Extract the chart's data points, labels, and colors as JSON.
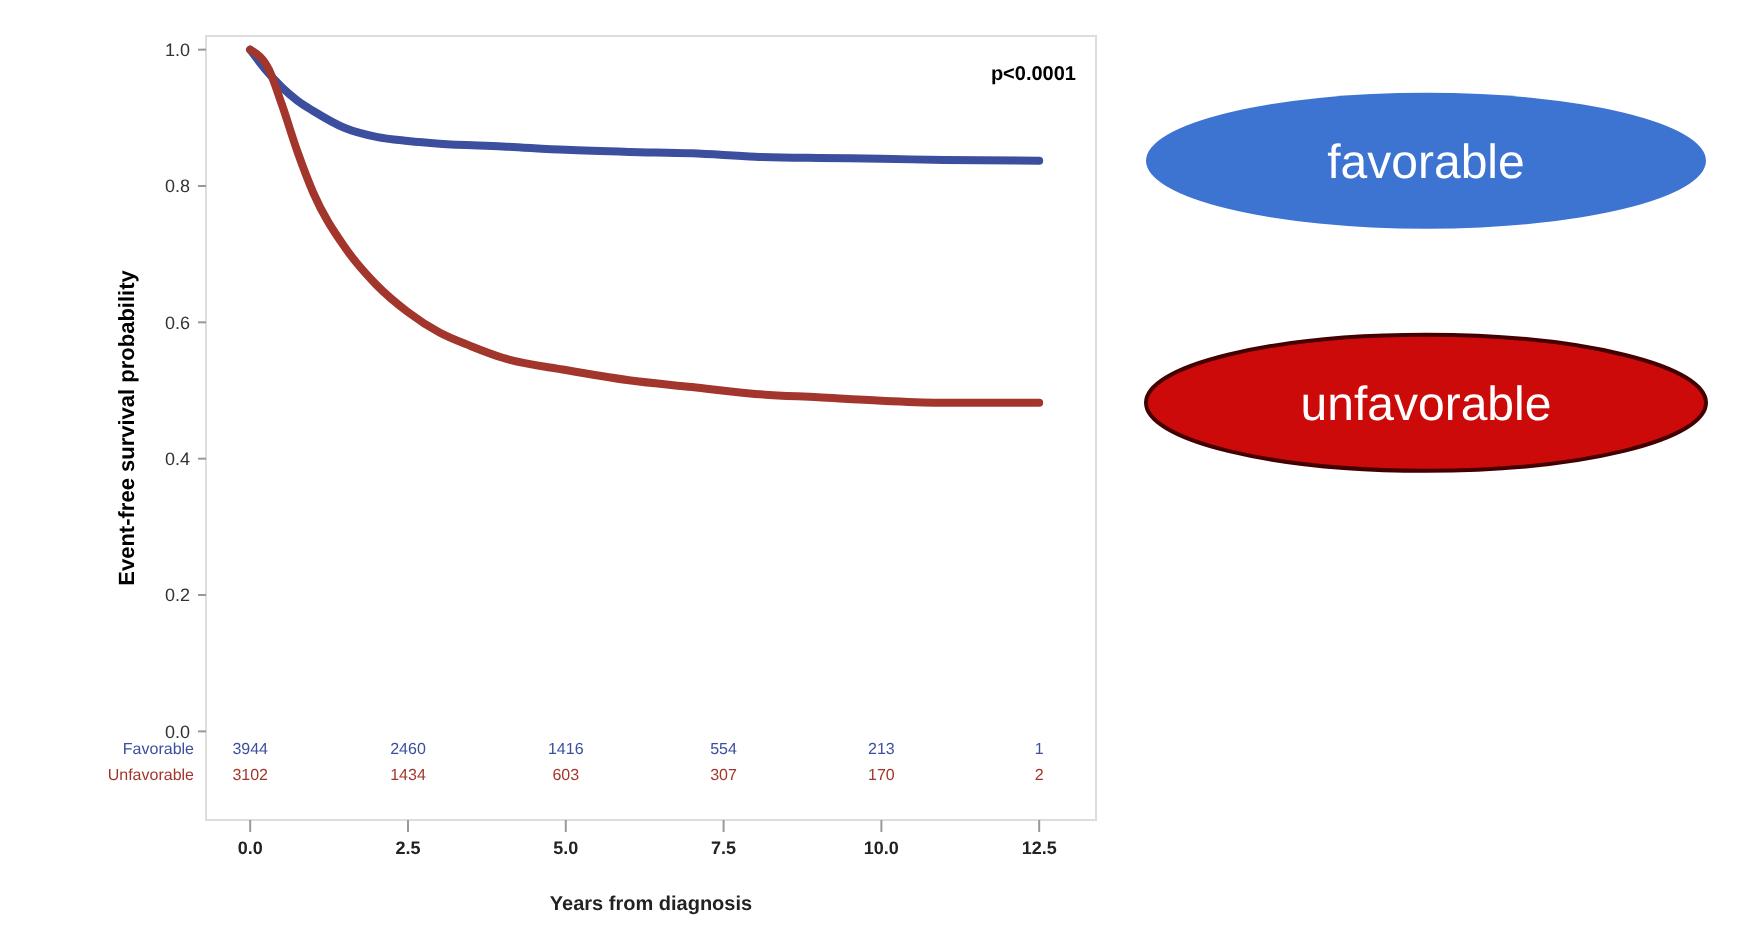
{
  "chart_data": {
    "type": "line",
    "xlabel": "Years from diagnosis",
    "ylabel": "Event-free survival probability",
    "xlim": [
      -0.7,
      13.4
    ],
    "ylim": [
      -0.13,
      1.02
    ],
    "xticks": [
      {
        "value": 0,
        "label": "0.0"
      },
      {
        "value": 2.5,
        "label": "2.5"
      },
      {
        "value": 5,
        "label": "5.0"
      },
      {
        "value": 7.5,
        "label": "7.5"
      },
      {
        "value": 10,
        "label": "10.0"
      },
      {
        "value": 12.5,
        "label": "12.5"
      }
    ],
    "yticks": [
      {
        "value": 0,
        "label": "0.0"
      },
      {
        "value": 0.2,
        "label": "0.2"
      },
      {
        "value": 0.4,
        "label": "0.4"
      },
      {
        "value": 0.6,
        "label": "0.6"
      },
      {
        "value": 0.8,
        "label": "0.8"
      },
      {
        "value": 1,
        "label": "1.0"
      }
    ],
    "line_style": "solid",
    "series": [
      {
        "name": "favorable",
        "color": "#3b4f9e",
        "x": [
          0,
          0.25,
          0.5,
          0.75,
          1,
          1.5,
          2,
          2.5,
          3,
          4,
          5,
          6,
          7,
          8,
          9,
          10,
          11,
          12.5
        ],
        "values": [
          1,
          0.97,
          0.945,
          0.925,
          0.91,
          0.885,
          0.872,
          0.866,
          0.862,
          0.858,
          0.853,
          0.85,
          0.848,
          0.843,
          0.841,
          0.84,
          0.838,
          0.837
        ]
      },
      {
        "name": "unfavorable",
        "color": "#a3362c",
        "x": [
          0,
          0.3,
          0.5,
          0.75,
          1,
          1.5,
          2,
          2.5,
          3,
          3.5,
          4,
          5,
          6,
          7,
          8,
          9,
          10,
          11,
          12.5
        ],
        "values": [
          1,
          0.97,
          0.92,
          0.85,
          0.79,
          0.71,
          0.655,
          0.615,
          0.585,
          0.565,
          0.548,
          0.53,
          0.515,
          0.505,
          0.495,
          0.49,
          0.485,
          0.482,
          0.482
        ]
      }
    ],
    "annotations": [
      "p<0.0001",
      "Favorable",
      "Unfavorable",
      "3944",
      "2460",
      "1416",
      "554",
      "213",
      "1",
      "3102",
      "1434",
      "603",
      "307",
      "170",
      "2"
    ]
  }
}
